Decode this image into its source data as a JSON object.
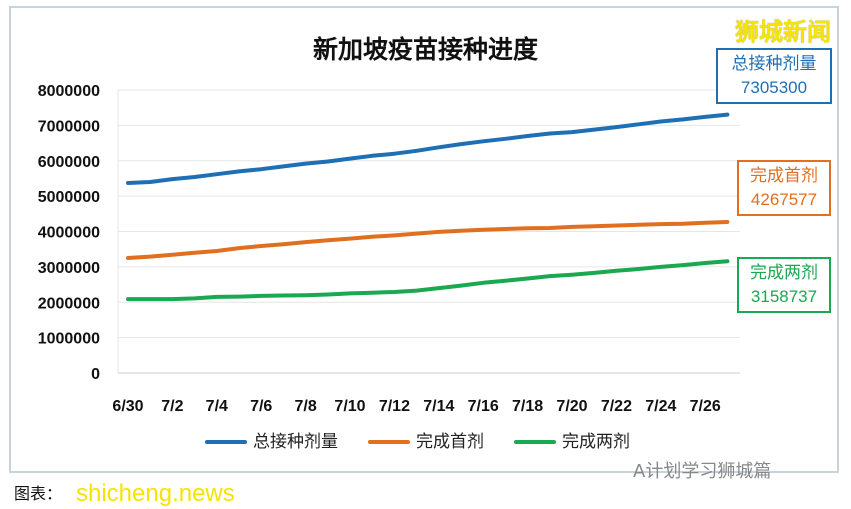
{
  "brand": "狮城新闻",
  "watermark": "A计划学习狮城篇",
  "caption": "图表：",
  "site": "shicheng.news",
  "callouts": [
    {
      "label": "总接种剂量",
      "value": "7305300",
      "color": "#1f6fb5"
    },
    {
      "label": "完成首剂",
      "value": "4267577",
      "color": "#e07020"
    },
    {
      "label": "完成两剂",
      "value": "3158737",
      "color": "#1aa850"
    }
  ],
  "chart_data": {
    "type": "line",
    "title": "新加坡疫苗接种进度",
    "x": [
      "6/30",
      "7/1",
      "7/2",
      "7/3",
      "7/4",
      "7/5",
      "7/6",
      "7/7",
      "7/8",
      "7/9",
      "7/10",
      "7/11",
      "7/12",
      "7/13",
      "7/14",
      "7/15",
      "7/16",
      "7/17",
      "7/18",
      "7/19",
      "7/20",
      "7/21",
      "7/22",
      "7/23",
      "7/24",
      "7/25",
      "7/26",
      "7/27"
    ],
    "xticks": [
      "6/30",
      "7/2",
      "7/4",
      "7/6",
      "7/8",
      "7/10",
      "7/12",
      "7/14",
      "7/16",
      "7/18",
      "7/20",
      "7/22",
      "7/24",
      "7/26"
    ],
    "yticks": [
      "0",
      "1000000",
      "2000000",
      "3000000",
      "4000000",
      "5000000",
      "6000000",
      "7000000",
      "8000000"
    ],
    "ylim": [
      0,
      8000000
    ],
    "grid": true,
    "legend": "bottom",
    "series": [
      {
        "name": "总接种剂量",
        "color": "#1f6fb5",
        "values": [
          5370000,
          5400000,
          5480000,
          5540000,
          5620000,
          5700000,
          5760000,
          5840000,
          5920000,
          5980000,
          6060000,
          6140000,
          6200000,
          6280000,
          6380000,
          6470000,
          6550000,
          6620000,
          6700000,
          6770000,
          6810000,
          6880000,
          6950000,
          7030000,
          7110000,
          7170000,
          7240000,
          7305300
        ]
      },
      {
        "name": "完成首剂",
        "color": "#e07020",
        "values": [
          3250000,
          3290000,
          3340000,
          3400000,
          3450000,
          3530000,
          3590000,
          3640000,
          3700000,
          3750000,
          3800000,
          3850000,
          3890000,
          3940000,
          3990000,
          4020000,
          4050000,
          4070000,
          4090000,
          4100000,
          4130000,
          4150000,
          4170000,
          4190000,
          4210000,
          4220000,
          4250000,
          4267577
        ]
      },
      {
        "name": "完成两剂",
        "color": "#1aa850",
        "values": [
          2090000,
          2090000,
          2090000,
          2110000,
          2150000,
          2160000,
          2180000,
          2190000,
          2200000,
          2220000,
          2250000,
          2270000,
          2290000,
          2330000,
          2400000,
          2470000,
          2550000,
          2610000,
          2670000,
          2740000,
          2780000,
          2830000,
          2890000,
          2940000,
          3000000,
          3050000,
          3110000,
          3158737
        ]
      }
    ]
  }
}
